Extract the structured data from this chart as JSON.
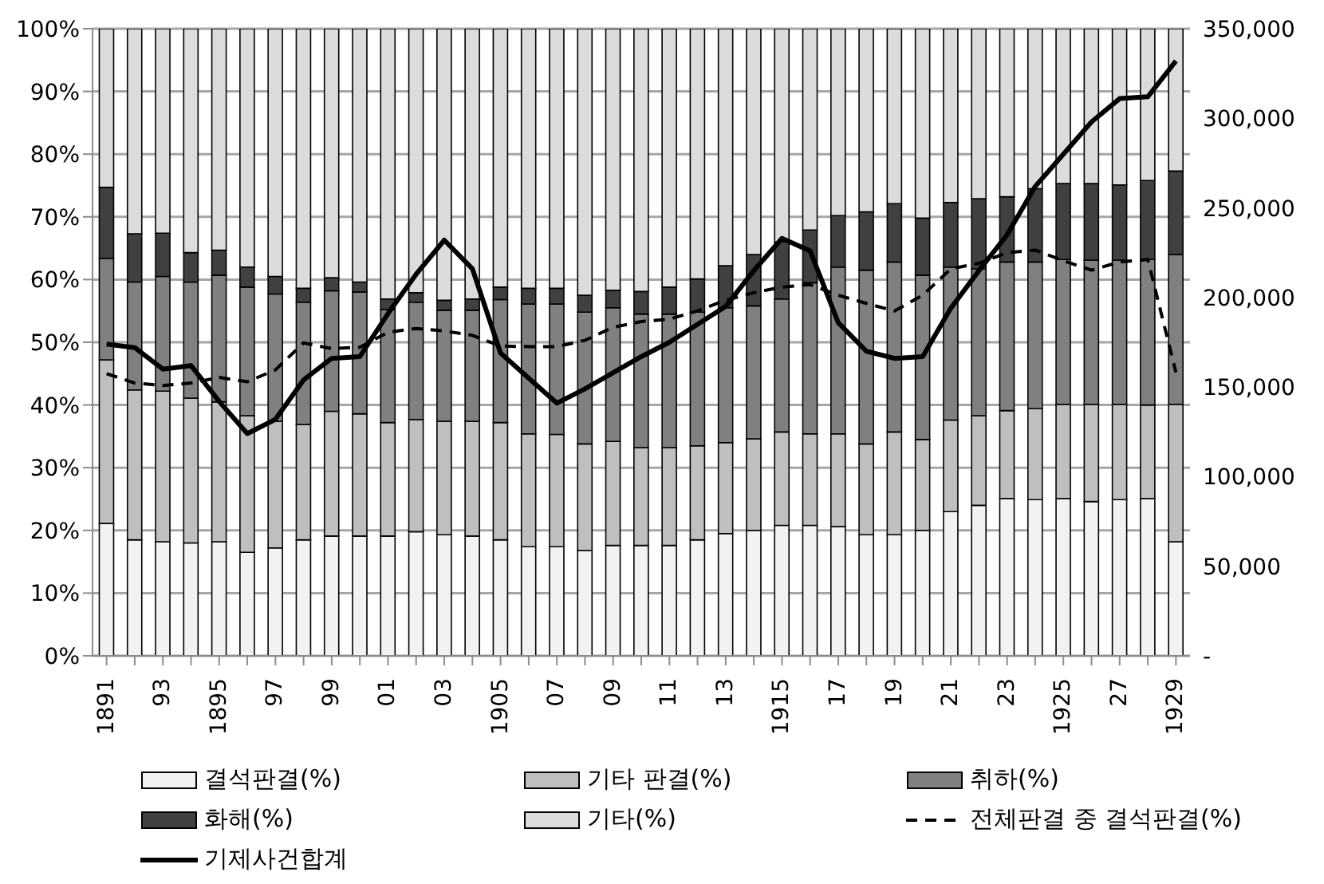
{
  "chart_data": {
    "type": "bar",
    "stacked": true,
    "categories": [
      "1891",
      null,
      "93",
      null,
      "1895",
      null,
      "97",
      null,
      "99",
      null,
      "01",
      null,
      "03",
      null,
      "1905",
      null,
      "07",
      null,
      "09",
      null,
      "11",
      null,
      "13",
      null,
      "1915",
      null,
      "17",
      null,
      "19",
      null,
      "21",
      null,
      "23",
      null,
      "1925",
      null,
      "27",
      null,
      "1929"
    ],
    "series": [
      {
        "name": "결석판결(%)",
        "color": "#f2f2f2",
        "values": [
          21.1,
          18.5,
          18.2,
          18.0,
          18.2,
          16.5,
          17.2,
          18.5,
          19.1,
          19.1,
          19.1,
          19.8,
          19.3,
          19.1,
          18.5,
          17.4,
          17.4,
          16.8,
          17.6,
          17.6,
          17.6,
          18.5,
          19.5,
          20.0,
          20.8,
          20.8,
          20.6,
          19.3,
          19.3,
          20.0,
          23.0,
          24.0,
          25.1,
          24.9,
          25.1,
          24.6,
          24.9,
          25.1,
          18.2
        ]
      },
      {
        "name": "기타 판결(%)",
        "color": "#bfbfbf",
        "values": [
          26.1,
          23.9,
          24.0,
          23.1,
          22.3,
          21.8,
          20.2,
          18.4,
          19.9,
          19.5,
          18.1,
          17.9,
          18.1,
          18.3,
          18.7,
          18.0,
          17.9,
          17.0,
          16.6,
          15.6,
          15.6,
          15.0,
          14.5,
          14.6,
          14.9,
          14.6,
          14.8,
          14.5,
          16.4,
          14.5,
          14.6,
          14.3,
          14.0,
          14.5,
          15.0,
          15.5,
          15.2,
          14.9,
          21.9
        ]
      },
      {
        "name": "취하(%)",
        "color": "#808080",
        "values": [
          16.2,
          17.2,
          18.3,
          18.5,
          20.2,
          20.5,
          20.3,
          19.5,
          19.2,
          19.4,
          18.0,
          18.7,
          17.7,
          17.7,
          19.6,
          20.7,
          20.8,
          21.0,
          21.3,
          21.3,
          21.3,
          21.3,
          21.5,
          21.2,
          21.2,
          24.1,
          26.6,
          27.7,
          27.1,
          26.2,
          24.4,
          23.4,
          23.7,
          23.4,
          23.1,
          23.0,
          23.0,
          23.2,
          23.9
        ]
      },
      {
        "name": "화해(%)",
        "color": "#404040",
        "values": [
          11.3,
          7.7,
          6.9,
          4.7,
          4.0,
          3.2,
          2.8,
          2.2,
          2.1,
          1.6,
          1.7,
          1.5,
          1.6,
          1.8,
          2.0,
          2.5,
          2.5,
          2.7,
          2.8,
          3.6,
          4.3,
          5.3,
          6.7,
          8.2,
          9.1,
          8.4,
          8.2,
          9.3,
          9.3,
          9.1,
          10.3,
          11.2,
          10.4,
          11.7,
          12.1,
          12.2,
          12.0,
          12.6,
          13.3
        ]
      },
      {
        "name": "기타(%)",
        "color": "#dcdcdc",
        "values": [
          25.3,
          32.7,
          32.6,
          35.7,
          35.3,
          38.0,
          39.5,
          41.4,
          39.7,
          40.4,
          43.1,
          42.1,
          43.3,
          43.1,
          41.2,
          41.4,
          41.4,
          42.5,
          41.7,
          41.9,
          41.2,
          39.9,
          37.8,
          36.0,
          34.0,
          32.1,
          29.8,
          29.2,
          27.9,
          30.2,
          27.7,
          27.1,
          26.8,
          25.5,
          24.7,
          24.7,
          24.9,
          24.2,
          22.7
        ]
      },
      {
        "name": "전체판결 중 결석판결(%)",
        "type": "line",
        "line_style": "dashed",
        "color": "#000000",
        "values": [
          45.0,
          43.5,
          43.1,
          43.5,
          44.4,
          43.7,
          45.6,
          49.9,
          49.0,
          49.2,
          51.6,
          52.2,
          51.8,
          51.1,
          49.4,
          49.3,
          49.3,
          50.3,
          52.4,
          53.3,
          53.7,
          55.0,
          56.7,
          57.9,
          58.8,
          59.2,
          57.5,
          56.2,
          55.0,
          57.5,
          61.7,
          62.6,
          64.3,
          64.7,
          63.0,
          61.5,
          62.8,
          63.2,
          45.2
        ]
      },
      {
        "name": "기제사건합계",
        "type": "line",
        "line_style": "solid",
        "axis": "y2",
        "color": "#000000",
        "values": [
          174000,
          172000,
          160000,
          162000,
          142000,
          124000,
          132000,
          154000,
          166000,
          167000,
          191000,
          213000,
          232000,
          216000,
          169000,
          155000,
          141000,
          149000,
          158000,
          167000,
          175000,
          185000,
          195000,
          215000,
          233000,
          226000,
          186000,
          170000,
          166000,
          167000,
          194000,
          215000,
          235000,
          262000,
          280000,
          298000,
          311000,
          312000,
          332000
        ]
      }
    ],
    "ylim": [
      0,
      100
    ],
    "yticks": [
      {
        "value": 0,
        "label": "0%"
      },
      {
        "value": 10,
        "label": "10%"
      },
      {
        "value": 20,
        "label": "20%"
      },
      {
        "value": 30,
        "label": "30%"
      },
      {
        "value": 40,
        "label": "40%"
      },
      {
        "value": 50,
        "label": "50%"
      },
      {
        "value": 60,
        "label": "60%"
      },
      {
        "value": 70,
        "label": "70%"
      },
      {
        "value": 80,
        "label": "80%"
      },
      {
        "value": 90,
        "label": "90%"
      },
      {
        "value": 100,
        "label": "100%"
      }
    ],
    "y2lim": [
      0,
      350000
    ],
    "y2ticks": [
      {
        "value": 0,
        "label": "-"
      },
      {
        "value": 50000,
        "label": "50,000"
      },
      {
        "value": 100000,
        "label": "100,000"
      },
      {
        "value": 150000,
        "label": "150,000"
      },
      {
        "value": 200000,
        "label": "200,000"
      },
      {
        "value": 250000,
        "label": "250,000"
      },
      {
        "value": 300000,
        "label": "300,000"
      },
      {
        "value": 350000,
        "label": "350,000"
      }
    ],
    "grid": "y",
    "legend": "bottom",
    "marker": "none"
  }
}
